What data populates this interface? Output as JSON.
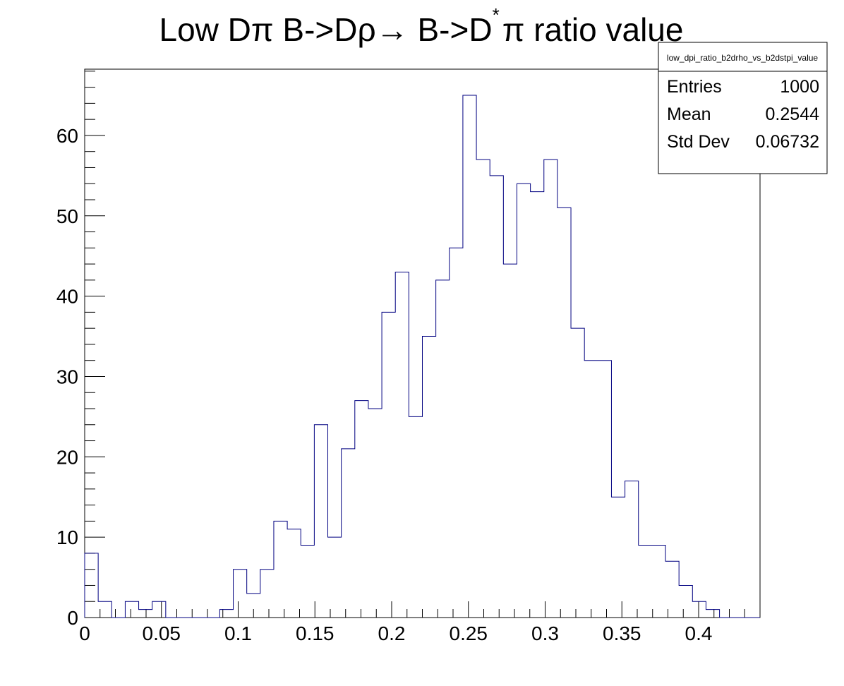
{
  "chart_data": {
    "type": "histogram",
    "title_parts": {
      "prefix": "Low D",
      "pi1": "π",
      "mid1": " B->D",
      "rho": "ρ",
      "arrow": "→",
      "mid2": " B->D",
      "star": "*",
      "pi2": "π",
      "suffix": " ratio value"
    },
    "xlabel": "",
    "ylabel": "",
    "xlim": [
      0,
      0.44
    ],
    "ylim": [
      0,
      68.25
    ],
    "bin_width": 0.0088,
    "values": [
      8,
      2,
      0,
      2,
      1,
      2,
      0,
      0,
      0,
      0,
      1,
      6,
      3,
      6,
      12,
      11,
      9,
      24,
      10,
      21,
      27,
      26,
      38,
      43,
      25,
      35,
      42,
      46,
      65,
      57,
      55,
      44,
      54,
      53,
      57,
      51,
      36,
      32,
      32,
      15,
      17,
      9,
      9,
      7,
      4,
      2,
      1,
      0,
      0,
      0
    ],
    "x_ticks": [
      0,
      0.05,
      0.1,
      0.15,
      0.2,
      0.25,
      0.3,
      0.35,
      0.4
    ],
    "x_tick_labels": [
      "0",
      "0.05",
      "0.1",
      "0.15",
      "0.2",
      "0.25",
      "0.3",
      "0.35",
      "0.4"
    ],
    "y_ticks": [
      0,
      10,
      20,
      30,
      40,
      50,
      60
    ],
    "y_tick_labels": [
      "0",
      "10",
      "20",
      "30",
      "40",
      "50",
      "60"
    ],
    "line_color": "#000080",
    "grid": false,
    "stats_box": {
      "placement": "top-right",
      "name": "low_dpi_ratio_b2drho_vs_b2dstpi_value",
      "rows": [
        {
          "label": "Entries",
          "value": "1000"
        },
        {
          "label": "Mean",
          "value": "0.2544"
        },
        {
          "label": "Std Dev",
          "value": "0.06732"
        }
      ]
    }
  }
}
